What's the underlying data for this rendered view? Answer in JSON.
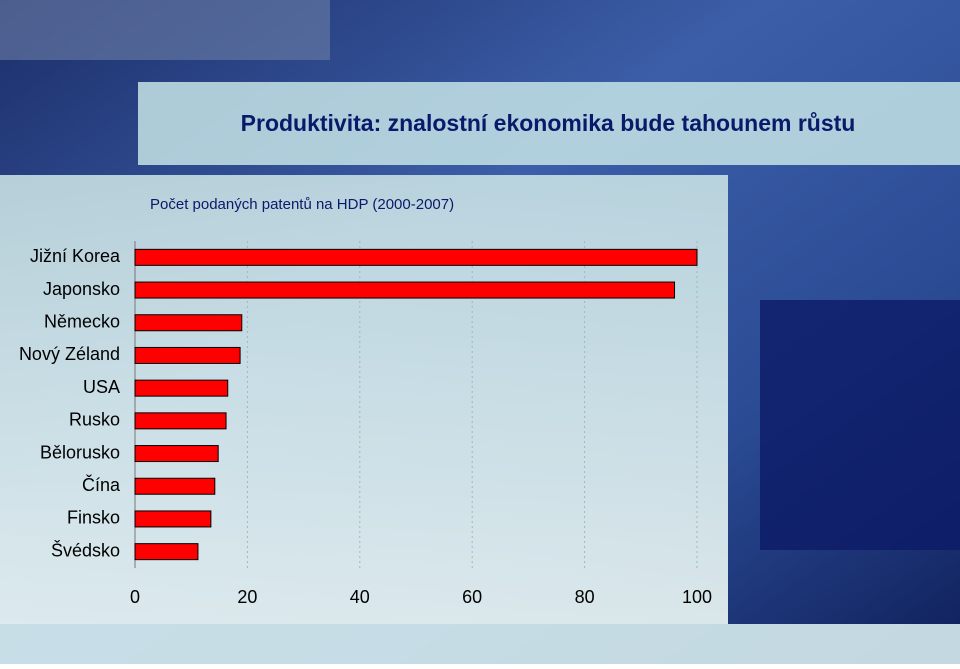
{
  "chart_data": {
    "type": "bar",
    "orientation": "horizontal",
    "title": "Produktivita: znalostní ekonomika bude tahounem růstu",
    "subtitle": "Počet podaných patentů na HDP (2000-2007)",
    "categories": [
      "Jižní Korea",
      "Japonsko",
      "Německo",
      "Nový Zéland",
      "USA",
      "Rusko",
      "Bělorusko",
      "Čína",
      "Finsko",
      "Švédsko"
    ],
    "values": [
      100,
      96,
      19,
      18.7,
      16.5,
      16.2,
      14.8,
      14.2,
      13.5,
      11.2
    ],
    "color": "#ff0000",
    "xlim": [
      0,
      100
    ],
    "xticks": [
      0,
      20,
      40,
      60,
      80,
      100
    ],
    "grid": true
  }
}
